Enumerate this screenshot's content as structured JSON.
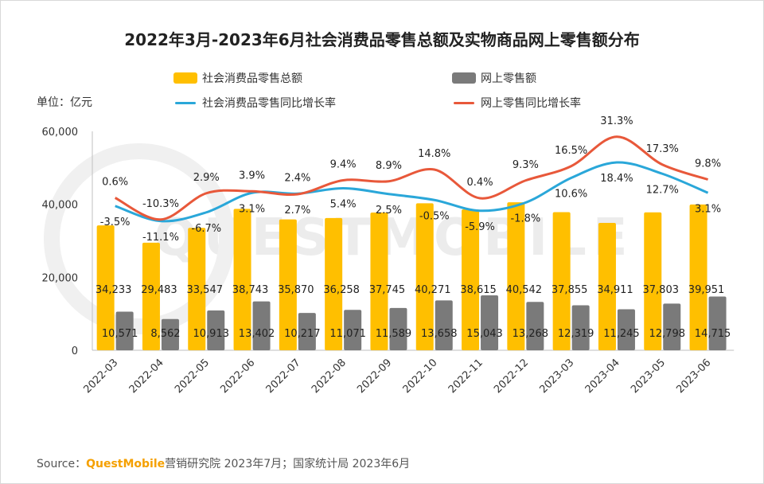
{
  "title": "2022年3月-2023年6月社会消费品零售总额及实物商品网上零售额分布",
  "unit": "单位：亿元",
  "source": {
    "prefix": "Source：",
    "brand": "QuestMobile",
    "rest": "营销研究院 2023年7月；国家统计局 2023年6月"
  },
  "watermark": "QUESTMOBILE",
  "colors": {
    "total_bar": "#ffbf00",
    "online_bar": "#7a7a7a",
    "total_line": "#2aa7d9",
    "online_line": "#e8583a"
  },
  "legend": [
    {
      "label": "社会消费品零售总额",
      "type": "bar",
      "color": "#ffbf00"
    },
    {
      "label": "网上零售额",
      "type": "bar",
      "color": "#7a7a7a"
    },
    {
      "label": "社会消费品零售同比增长率",
      "type": "line",
      "color": "#2aa7d9"
    },
    {
      "label": "网上零售同比增长率",
      "type": "line",
      "color": "#e8583a"
    }
  ],
  "chart_data": {
    "type": "bar",
    "categories": [
      "2022-03",
      "2022-04",
      "2022-05",
      "2022-06",
      "2022-07",
      "2022-08",
      "2022-09",
      "2022-10",
      "2022-11",
      "2022-12",
      "2023-03",
      "2023-04",
      "2023-05",
      "2023-06"
    ],
    "ylim": [
      0,
      60000
    ],
    "yticks": [
      "0",
      "20,000",
      "40,000",
      "60,000"
    ],
    "series": [
      {
        "name": "社会消费品零售总额",
        "values": [
          34233,
          29483,
          33547,
          38743,
          35870,
          36258,
          37745,
          40271,
          38615,
          40542,
          37855,
          34911,
          37803,
          39951
        ],
        "labels": [
          "34,233",
          "29,483",
          "33,547",
          "38,743",
          "35,870",
          "36,258",
          "37,745",
          "40,271",
          "38,615",
          "40,542",
          "37,855",
          "34,911",
          "37,803",
          "39,951"
        ]
      },
      {
        "name": "网上零售额",
        "values": [
          10571,
          8562,
          10913,
          13402,
          10217,
          11071,
          11589,
          13658,
          15043,
          13268,
          12319,
          11245,
          12798,
          14715
        ],
        "labels": [
          "10,571",
          "8,562",
          "10,913",
          "13,402",
          "10,217",
          "11,071",
          "11,589",
          "13,658",
          "15,043",
          "13,268",
          "12,319",
          "11,245",
          "12,798",
          "14,715"
        ]
      },
      {
        "name": "社会消费品零售同比增长率",
        "type": "line",
        "values": [
          -3.5,
          -11.1,
          -6.7,
          3.1,
          2.7,
          5.4,
          2.5,
          -0.5,
          -5.9,
          -1.8,
          10.6,
          18.4,
          12.7,
          3.1
        ],
        "labels": [
          "-3.5%",
          "-11.1%",
          "-6.7%",
          "3.1%",
          "2.7%",
          "5.4%",
          "2.5%",
          "-0.5%",
          "-5.9%",
          "-1.8%",
          "10.6%",
          "18.4%",
          "12.7%",
          "3.1%"
        ]
      },
      {
        "name": "网上零售同比增长率",
        "type": "line",
        "values": [
          0.6,
          -10.3,
          2.9,
          3.9,
          2.4,
          9.4,
          8.9,
          14.8,
          0.4,
          9.3,
          16.5,
          31.3,
          17.3,
          9.8
        ],
        "labels": [
          "0.6%",
          "-10.3%",
          "2.9%",
          "3.9%",
          "2.4%",
          "9.4%",
          "8.9%",
          "14.8%",
          "0.4%",
          "9.3%",
          "16.5%",
          "31.3%",
          "17.3%",
          "9.8%"
        ]
      }
    ]
  }
}
